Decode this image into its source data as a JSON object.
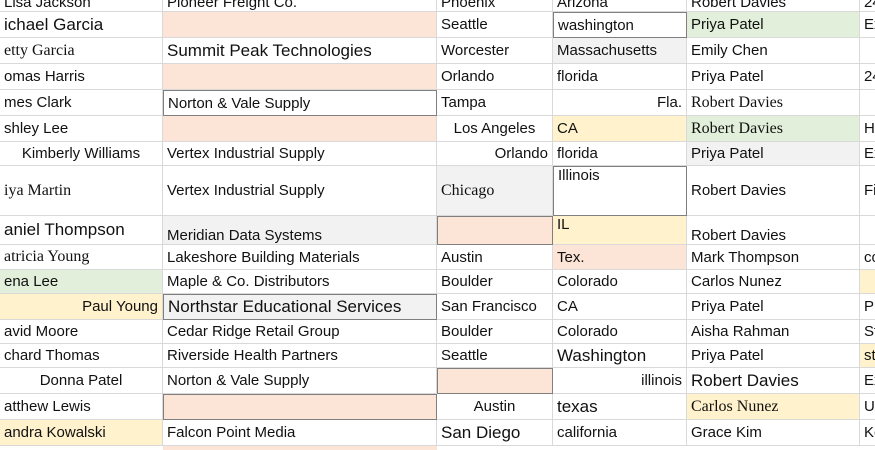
{
  "table": {
    "rows": [
      [
        "Lisa Jackson",
        "Pioneer Freight Co.",
        "Phoenix",
        "Arizona",
        "Robert Davies",
        "24"
      ],
      [
        "ichael Garcia",
        "",
        "Seattle",
        "washington",
        "Priya Patel",
        "Ex"
      ],
      [
        "etty Garcia",
        "Summit Peak Technologies",
        "Worcester",
        "Massachusetts",
        "Emily Chen",
        ""
      ],
      [
        "omas Harris",
        "",
        "Orlando",
        "florida",
        "Priya Patel",
        "24"
      ],
      [
        "mes Clark",
        "Norton & Vale Supply",
        "Tampa",
        "Fla.",
        "Robert Davies",
        ""
      ],
      [
        "shley Lee",
        "",
        "Los Angeles",
        "CA",
        "Robert Davies",
        "H"
      ],
      [
        "Kimberly Williams",
        "Vertex Industrial Supply",
        "Orlando",
        "florida",
        "Priya Patel",
        "Ex"
      ],
      [
        "iya Martin",
        "Vertex Industrial Supply",
        "Chicago",
        "Illinois",
        "Robert Davies",
        "Fi"
      ],
      [
        "aniel Thompson",
        "Meridian Data Systems",
        "",
        "IL",
        "Robert Davies",
        ""
      ],
      [
        "atricia Young",
        "Lakeshore Building Materials",
        "Austin",
        "Tex.",
        "Mark Thompson",
        "co"
      ],
      [
        "ena Lee",
        "Maple & Co. Distributors",
        "Boulder",
        "Colorado",
        "Carlos Nunez",
        ""
      ],
      [
        "Paul Young",
        "Northstar Educational Services",
        "San Francisco",
        "CA",
        "Priya Patel",
        "Pr"
      ],
      [
        "avid Moore",
        "Cedar Ridge Retail Group",
        "Boulder",
        "Colorado",
        "Aisha Rahman",
        "St"
      ],
      [
        "chard Thomas",
        "Riverside Health Partners",
        "Seattle",
        "Washington",
        "Priya Patel",
        "st"
      ],
      [
        "Donna Patel",
        "Norton & Vale Supply",
        "",
        "illinois",
        "Robert Davies",
        "Ex"
      ],
      [
        "atthew Lewis",
        "",
        "Austin",
        "texas",
        "Carlos Nunez",
        "U"
      ],
      [
        "andra Kowalski",
        "Falcon Point Media",
        "San Diego",
        "california",
        "Grace Kim",
        "Ko"
      ]
    ]
  }
}
